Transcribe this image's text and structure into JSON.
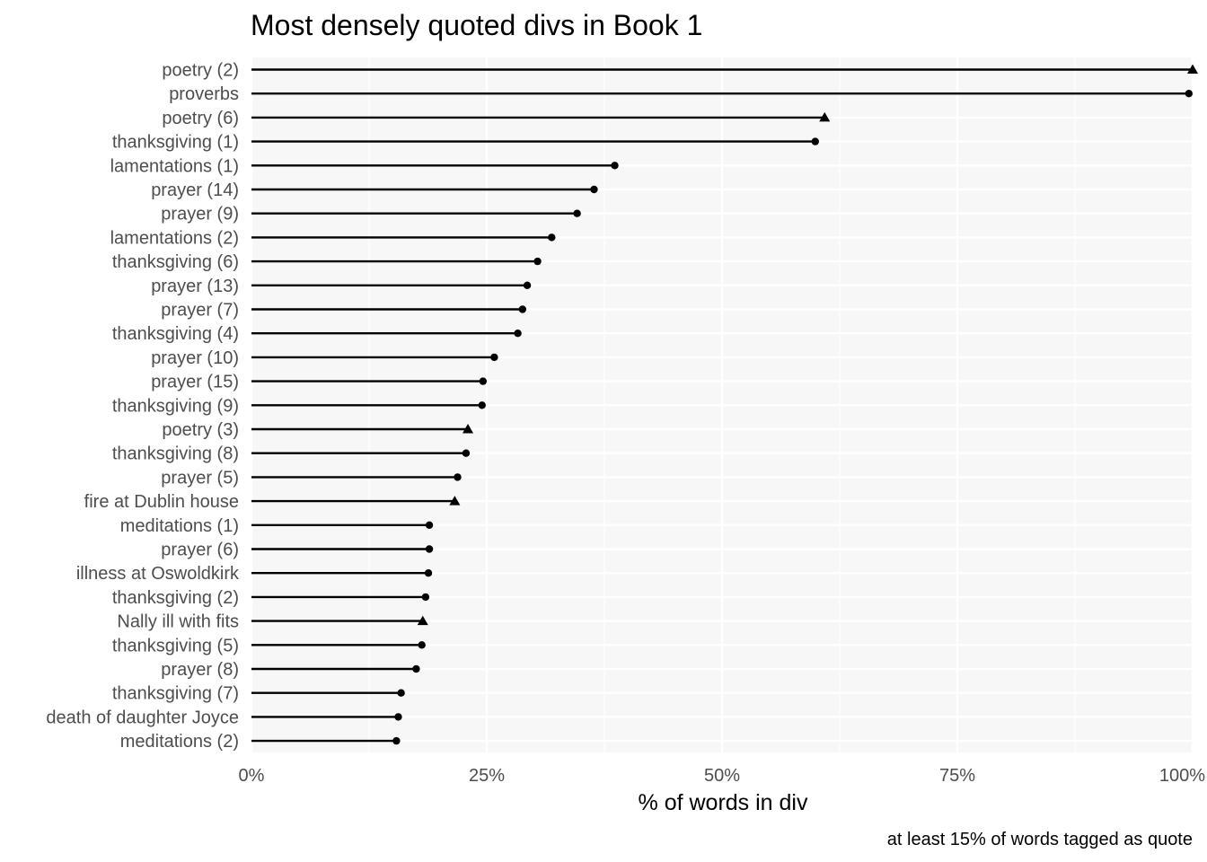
{
  "chart_data": {
    "type": "lollipop",
    "title": "Most densely quoted divs in Book 1",
    "xlabel": "% of words in div",
    "caption": "at least 15% of words tagged as quote",
    "xlim": [
      0,
      100
    ],
    "x_ticks": [
      "0%",
      "25%",
      "50%",
      "75%",
      "100%"
    ],
    "x_tick_values": [
      0,
      25,
      50,
      75,
      100
    ],
    "grid": true,
    "colors": {
      "panel": "#f7f7f7",
      "grid": "#ffffff",
      "mark": "#000000"
    },
    "categories": [
      "poetry (2)",
      "proverbs",
      "poetry (6)",
      "thanksgiving (1)",
      "lamentations (1)",
      "prayer (14)",
      "prayer (9)",
      "lamentations (2)",
      "thanksgiving (6)",
      "prayer (13)",
      "prayer (7)",
      "thanksgiving (4)",
      "prayer (10)",
      "prayer (15)",
      "thanksgiving (9)",
      "poetry (3)",
      "thanksgiving (8)",
      "prayer (5)",
      "fire at Dublin house",
      "meditations (1)",
      "prayer (6)",
      "illness at Oswoldkirk",
      "thanksgiving (2)",
      "Nally ill with fits",
      "thanksgiving (5)",
      "prayer (8)",
      "thanksgiving (7)",
      "death of daughter Joyce",
      "meditations (2)"
    ],
    "values": [
      100,
      99.6,
      60.9,
      59.9,
      38.6,
      36.4,
      34.6,
      31.9,
      30.4,
      29.3,
      28.8,
      28.3,
      25.8,
      24.6,
      24.5,
      23.0,
      22.8,
      21.9,
      21.6,
      18.9,
      18.9,
      18.8,
      18.5,
      18.2,
      18.1,
      17.5,
      15.9,
      15.6,
      15.4
    ],
    "shapes": [
      "triangle",
      "circle",
      "triangle",
      "circle",
      "circle",
      "circle",
      "circle",
      "circle",
      "circle",
      "circle",
      "circle",
      "circle",
      "circle",
      "circle",
      "circle",
      "triangle",
      "circle",
      "circle",
      "triangle",
      "circle",
      "circle",
      "circle",
      "circle",
      "triangle",
      "circle",
      "circle",
      "circle",
      "circle",
      "circle"
    ]
  }
}
